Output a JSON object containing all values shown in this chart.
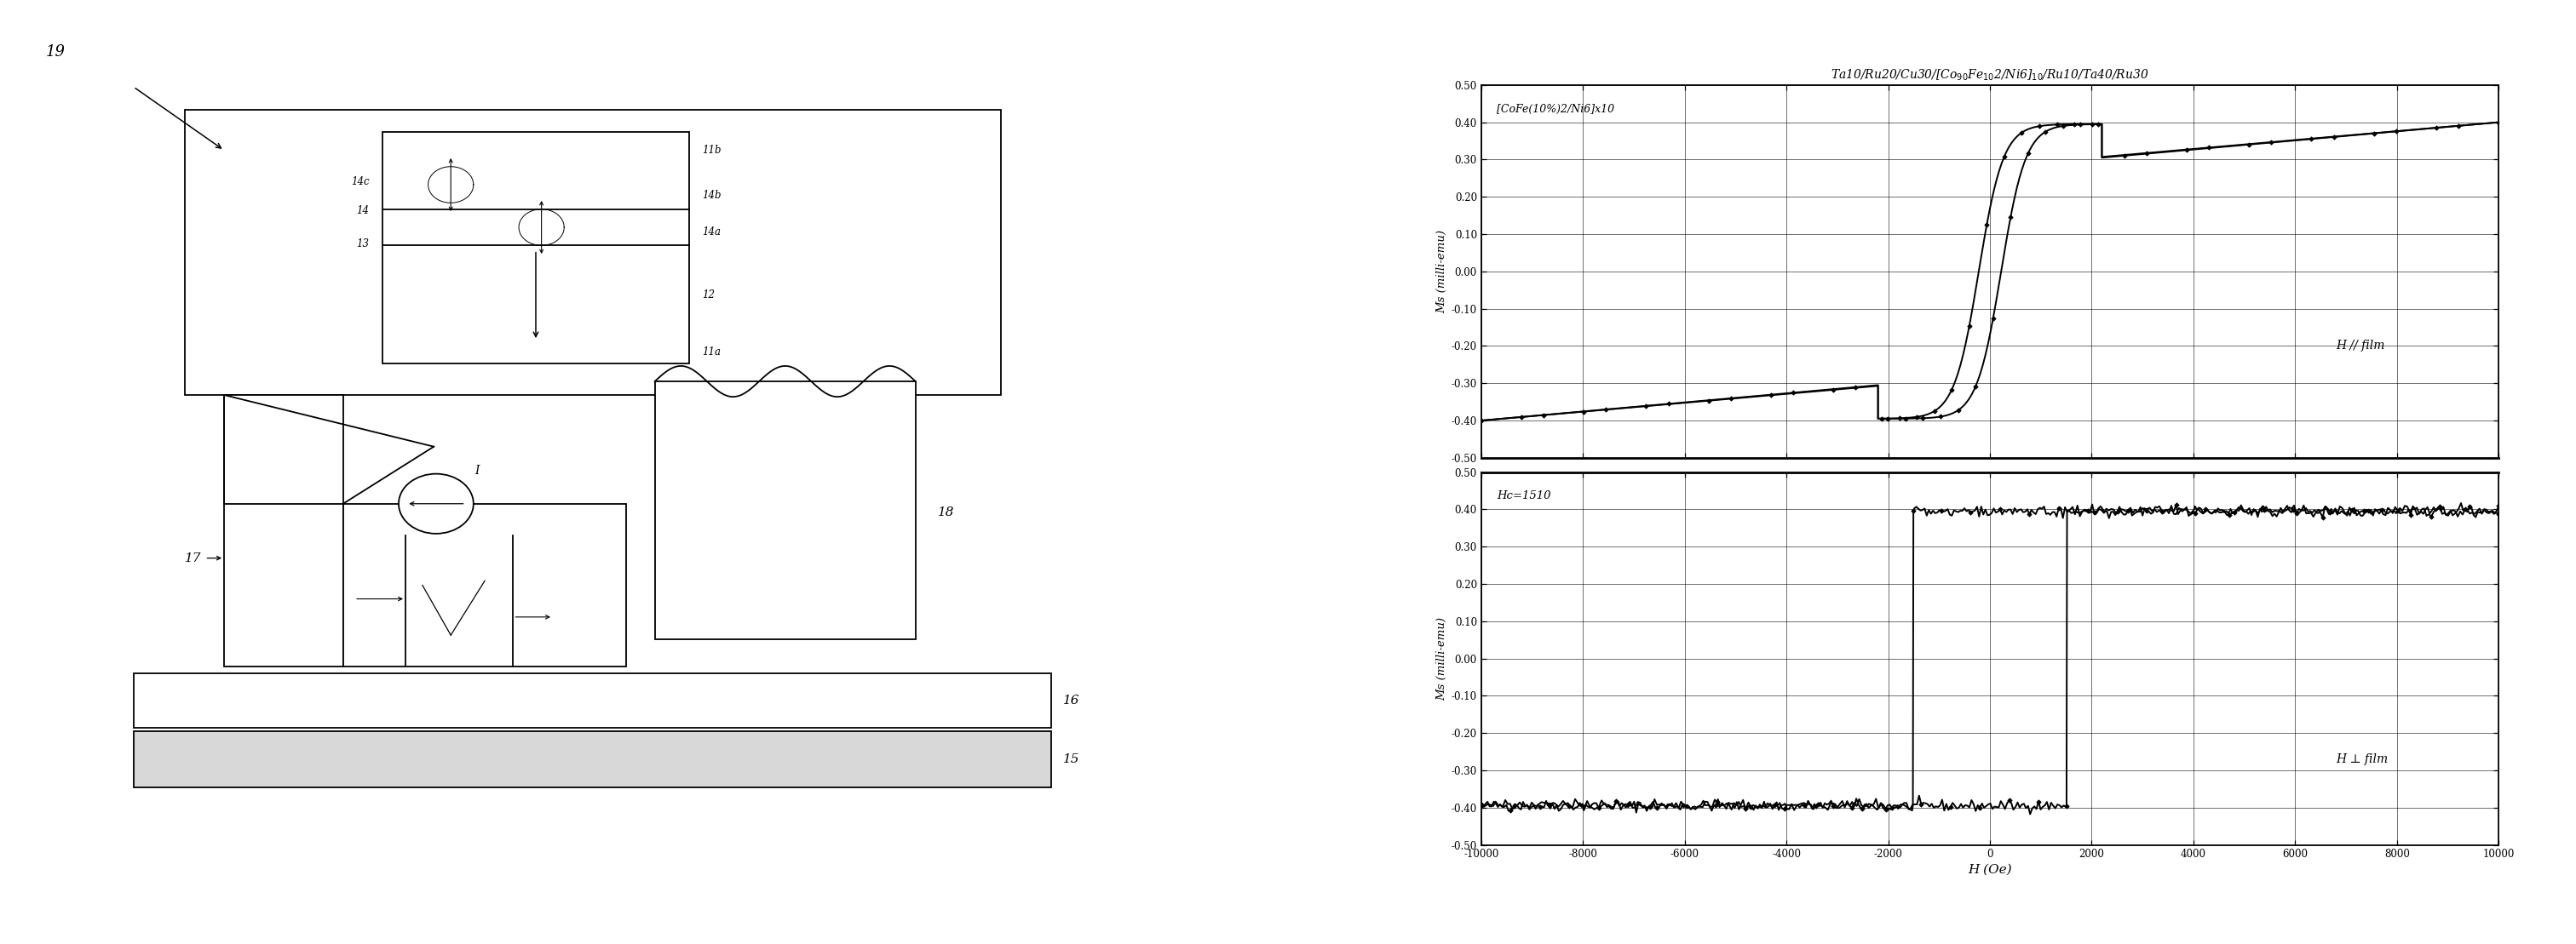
{
  "title": "Ta10/Ru20/Cu30/[Coₐ₀Fe₁₀ 2/Ni6]₁₀/Ru10/Ta40/Ru30",
  "xlabel": "H (Oe)",
  "ylabel": "Ms (milli-emu)",
  "xlim": [
    -10000,
    10000
  ],
  "ylim": [
    -0.5,
    0.5
  ],
  "yticks": [
    -0.5,
    -0.4,
    -0.3,
    -0.2,
    -0.1,
    0.0,
    0.1,
    0.2,
    0.3,
    0.4,
    0.5
  ],
  "ytick_labels": [
    "-0.50",
    "-0.40",
    "-0.30",
    "-0.20",
    "-0.10",
    "0.00",
    "0.10",
    "0.20",
    "0.30",
    "0.40",
    "0.50"
  ],
  "xticks": [
    -10000,
    -8000,
    -6000,
    -4000,
    -2000,
    0,
    2000,
    4000,
    6000,
    8000,
    10000
  ],
  "xtick_labels": [
    "-10000",
    "-8000",
    "-6000",
    "-4000",
    "-2000",
    "0",
    "2000",
    "4000",
    "6000",
    "8000",
    "10000"
  ],
  "label_top_annot": "[CoFe(10%)2/Ni6]x10",
  "label_top_field": "H // film",
  "label_bot_annot": "Hc=1510",
  "label_bot_field": "H ⊥ film",
  "fig_number": "19",
  "side_labels_right": [
    "11b",
    "14b",
    "14a",
    "12",
    "11a"
  ],
  "side_labels_left": [
    "14c",
    "14",
    "13"
  ],
  "label_18": "18",
  "label_17": "17",
  "label_16": "16",
  "label_15": "15"
}
